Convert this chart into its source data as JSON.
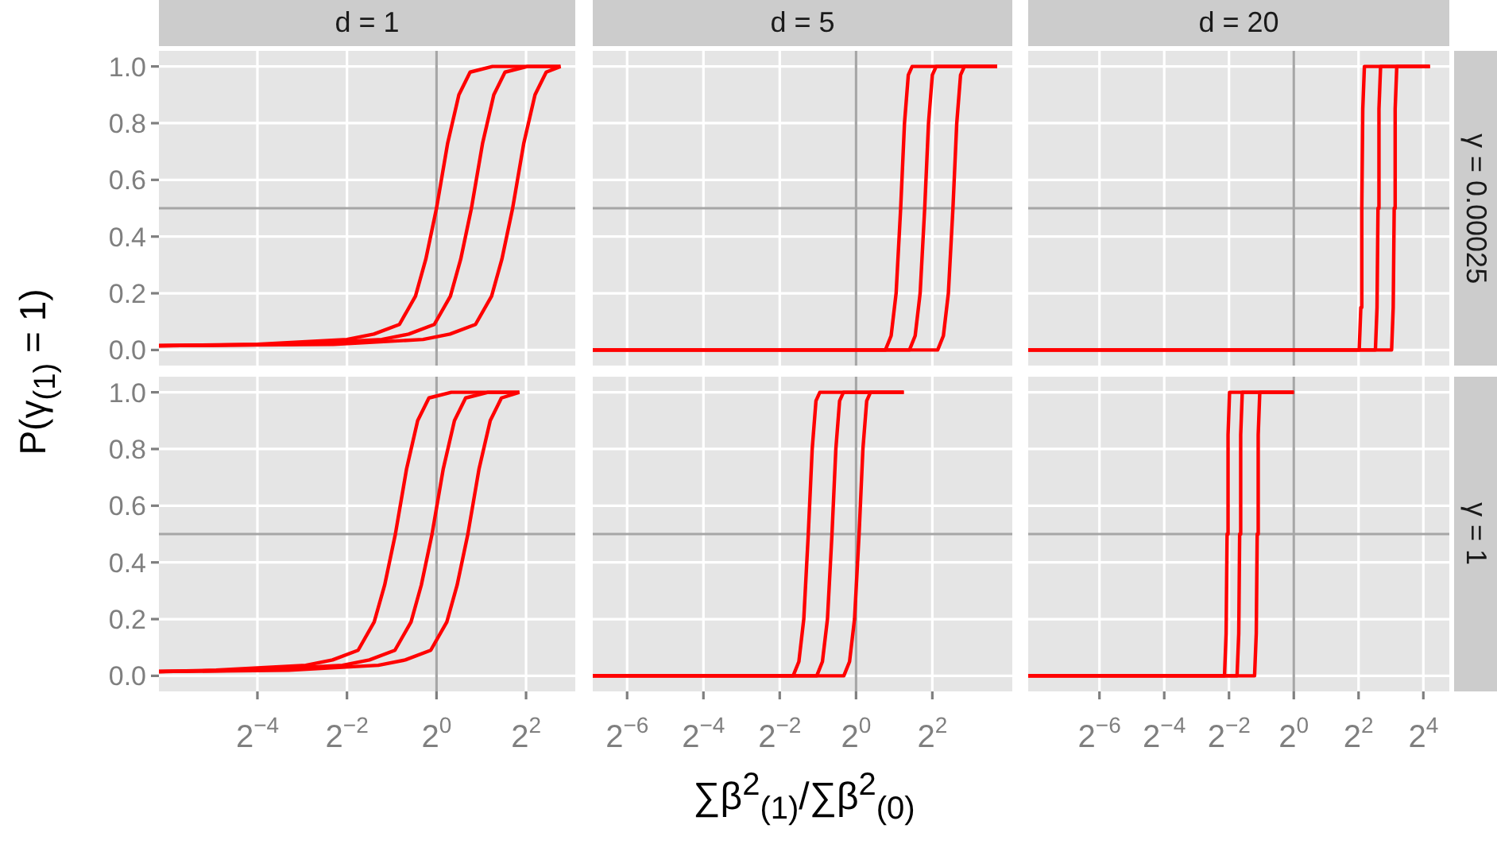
{
  "chart_data": [
    {
      "type": "line",
      "title": "d = 1",
      "log": "x",
      "grid": true,
      "tick_labels": "y",
      "xlim": [
        0.0136,
        8.57
      ],
      "xticks": [
        0.0625,
        0.25,
        1,
        4
      ],
      "ylim": [
        -0.055,
        1.055
      ],
      "yticks": [
        {
          "value": 0,
          "label": "0.0"
        },
        {
          "value": 0.2,
          "label": "0.2"
        },
        {
          "value": 0.4,
          "label": "0.4"
        },
        {
          "value": 0.6,
          "label": "0.6"
        },
        {
          "value": 0.8,
          "label": "0.8"
        },
        {
          "value": 1,
          "label": "1.0"
        }
      ],
      "ref_lines": [
        {
          "axis": "x",
          "value": 1,
          "color": "#a6a6a6"
        },
        {
          "axis": "y",
          "value": 0.5,
          "color": "#a6a6a6"
        }
      ],
      "series": [
        {
          "color": "#ff0000",
          "x": [
            0.0136,
            0.0625,
            0.25,
            0.379,
            0.563,
            0.722,
            0.847,
            1,
            1.189,
            1.414,
            1.682,
            2.378,
            6.82
          ],
          "values": [
            0.015,
            0.02,
            0.037,
            0.056,
            0.09,
            0.19,
            0.32,
            0.5,
            0.73,
            0.9,
            0.98,
            1,
            1
          ]
        },
        {
          "color": "#ff0000",
          "x": [
            0.0136,
            0.1073,
            0.429,
            0.651,
            0.966,
            1.24,
            1.454,
            1.717,
            2.042,
            2.428,
            2.888,
            4.084,
            6.82
          ],
          "values": [
            0.015,
            0.02,
            0.037,
            0.056,
            0.09,
            0.19,
            0.32,
            0.5,
            0.73,
            0.9,
            0.98,
            1,
            1
          ]
        },
        {
          "color": "#ff0000",
          "x": [
            0.0136,
            0.203,
            0.812,
            1.231,
            1.828,
            2.346,
            2.751,
            3.249,
            3.864,
            4.595,
            5.464,
            6.82
          ],
          "values": [
            0.015,
            0.02,
            0.037,
            0.056,
            0.09,
            0.19,
            0.32,
            0.5,
            0.73,
            0.9,
            0.98,
            1
          ]
        }
      ]
    },
    {
      "type": "line",
      "title": "d = 5",
      "log": "x",
      "grid": true,
      "tick_labels": false,
      "xlim": [
        0.00837,
        17.1
      ],
      "xticks": [
        0.015625,
        0.0625,
        0.25,
        1,
        4
      ],
      "ylim": [
        -0.055,
        1.055
      ],
      "yticks": [
        0,
        0.2,
        0.4,
        0.6,
        0.8,
        1
      ],
      "ref_lines": [
        {
          "axis": "x",
          "value": 1,
          "color": "#a6a6a6"
        },
        {
          "axis": "y",
          "value": 0.5,
          "color": "#a6a6a6"
        }
      ],
      "series": [
        {
          "color": "#ff0000",
          "x": [
            0.00837,
            1.705,
            1.892,
            2.071,
            2.25,
            2.412,
            2.585,
            2.771,
            13.0
          ],
          "values": [
            0,
            0,
            0.05,
            0.2,
            0.5,
            0.8,
            0.97,
            1,
            1
          ]
        },
        {
          "color": "#ff0000",
          "x": [
            0.00837,
            2.639,
            2.928,
            3.204,
            3.482,
            3.732,
            4.0,
            4.287,
            13.0
          ],
          "values": [
            0,
            0,
            0.05,
            0.2,
            0.5,
            0.8,
            0.97,
            1,
            1
          ]
        },
        {
          "color": "#ff0000",
          "x": [
            0.00837,
            4.407,
            4.89,
            5.352,
            5.816,
            6.233,
            6.68,
            7.16,
            13.0
          ],
          "values": [
            0,
            0,
            0.05,
            0.2,
            0.5,
            0.8,
            0.97,
            1,
            1
          ]
        }
      ]
    },
    {
      "type": "line",
      "title": "d = 20",
      "annotations": [
        "γ = 0.00025"
      ],
      "log": "x",
      "grid": true,
      "tick_labels": false,
      "xlim": [
        0.0034,
        27.9
      ],
      "xticks": [
        0.015625,
        0.0625,
        0.25,
        1,
        4,
        16
      ],
      "ylim": [
        -0.055,
        1.055
      ],
      "yticks": [
        0,
        0.2,
        0.4,
        0.6,
        0.8,
        1
      ],
      "ref_lines": [
        {
          "axis": "x",
          "value": 1,
          "color": "#a6a6a6"
        },
        {
          "axis": "y",
          "value": 0.5,
          "color": "#a6a6a6"
        }
      ],
      "series": [
        {
          "color": "#ff0000",
          "x": [
            0.0034,
            4.056,
            4.199,
            4.287,
            4.377,
            4.532,
            18.4
          ],
          "values": [
            0,
            0,
            0.15,
            0.5,
            0.85,
            1,
            1
          ]
        },
        {
          "color": "#ff0000",
          "x": [
            0.0034,
            5.736,
            5.938,
            6.063,
            6.19,
            6.409,
            18.4
          ],
          "values": [
            0,
            0,
            0.15,
            0.5,
            0.85,
            1,
            1
          ]
        },
        {
          "color": "#ff0000",
          "x": [
            0.0034,
            8.111,
            8.397,
            8.574,
            8.754,
            9.063,
            18.4
          ],
          "values": [
            0,
            0,
            0.15,
            0.5,
            0.85,
            1,
            1
          ]
        }
      ]
    },
    {
      "type": "line",
      "ylabel": "P(γ$_{(1)}$ = 1)",
      "log": "x",
      "grid": true,
      "xlim": [
        0.0136,
        8.57
      ],
      "xticks": [
        {
          "value": 0.0625,
          "label": "2$^{−4}$"
        },
        {
          "value": 0.25,
          "label": "2$^{−2}$"
        },
        {
          "value": 1,
          "label": "2$^{0}$"
        },
        {
          "value": 4,
          "label": "2$^{2}$"
        }
      ],
      "ylim": [
        -0.055,
        1.055
      ],
      "yticks": [
        {
          "value": 0,
          "label": "0.0"
        },
        {
          "value": 0.2,
          "label": "0.2"
        },
        {
          "value": 0.4,
          "label": "0.4"
        },
        {
          "value": 0.6,
          "label": "0.6"
        },
        {
          "value": 0.8,
          "label": "0.8"
        },
        {
          "value": 1,
          "label": "1.0"
        }
      ],
      "ref_lines": [
        {
          "axis": "x",
          "value": 1,
          "color": "#a6a6a6"
        },
        {
          "axis": "y",
          "value": 0.5,
          "color": "#a6a6a6"
        }
      ],
      "series": [
        {
          "color": "#ff0000",
          "x": [
            0.0136,
            0.033,
            0.1321,
            0.2,
            0.297,
            0.381,
            0.448,
            0.529,
            0.629,
            0.747,
            0.889,
            1.257,
            3.605
          ],
          "values": [
            0.015,
            0.02,
            0.037,
            0.056,
            0.09,
            0.19,
            0.32,
            0.5,
            0.73,
            0.9,
            0.98,
            1,
            1
          ]
        },
        {
          "color": "#ff0000",
          "x": [
            0.0136,
            0.0583,
            0.233,
            0.354,
            0.525,
            0.674,
            0.79,
            0.933,
            1.11,
            1.32,
            1.569,
            2.219,
            3.605
          ],
          "values": [
            0.015,
            0.02,
            0.037,
            0.056,
            0.09,
            0.19,
            0.32,
            0.5,
            0.73,
            0.9,
            0.98,
            1,
            1
          ]
        },
        {
          "color": "#ff0000",
          "x": [
            0.0136,
            0.1015,
            0.406,
            0.616,
            0.914,
            1.173,
            1.376,
            1.625,
            1.932,
            2.297,
            2.732,
            3.605
          ],
          "values": [
            0.015,
            0.02,
            0.037,
            0.056,
            0.09,
            0.19,
            0.32,
            0.5,
            0.73,
            0.9,
            0.98,
            1
          ]
        }
      ]
    },
    {
      "type": "line",
      "xlabel": "∑β$^{2}$$_{(1)}$/∑β$^{2}$$_{(0)}$",
      "log": "x",
      "grid": true,
      "tick_labels": "x",
      "xlim": [
        0.00837,
        17.1
      ],
      "xticks": [
        {
          "value": 0.015625,
          "label": "2$^{−6}$"
        },
        {
          "value": 0.0625,
          "label": "2$^{−4}$"
        },
        {
          "value": 0.25,
          "label": "2$^{−2}$"
        },
        {
          "value": 1,
          "label": "2$^{0}$"
        },
        {
          "value": 4,
          "label": "2$^{2}$"
        }
      ],
      "ylim": [
        -0.055,
        1.055
      ],
      "yticks": [
        0,
        0.2,
        0.4,
        0.6,
        0.8,
        1
      ],
      "ref_lines": [
        {
          "axis": "x",
          "value": 1,
          "color": "#a6a6a6"
        },
        {
          "axis": "y",
          "value": 0.5,
          "color": "#a6a6a6"
        }
      ],
      "series": [
        {
          "color": "#ff0000",
          "x": [
            0.00837,
            0.319,
            0.354,
            0.387,
            0.42,
            0.451,
            0.483,
            0.518,
            2.378
          ],
          "values": [
            0,
            0,
            0.05,
            0.2,
            0.5,
            0.8,
            0.97,
            1,
            1
          ]
        },
        {
          "color": "#ff0000",
          "x": [
            0.00837,
            0.49,
            0.543,
            0.595,
            0.646,
            0.693,
            0.742,
            0.796,
            2.378
          ],
          "values": [
            0,
            0,
            0.05,
            0.2,
            0.5,
            0.8,
            0.97,
            1,
            1
          ]
        },
        {
          "color": "#ff0000",
          "x": [
            0.00837,
            0.801,
            0.889,
            0.973,
            1.057,
            1.133,
            1.214,
            1.301,
            2.378
          ],
          "values": [
            0,
            0,
            0.05,
            0.2,
            0.5,
            0.8,
            0.97,
            1,
            1
          ]
        }
      ]
    },
    {
      "type": "line",
      "annotations": [
        "γ = 1"
      ],
      "log": "x",
      "grid": true,
      "tick_labels": "x",
      "xlim": [
        0.0034,
        27.9
      ],
      "xticks": [
        {
          "value": 0.015625,
          "label": "2$^{−6}$"
        },
        {
          "value": 0.0625,
          "label": "2$^{−4}$"
        },
        {
          "value": 0.25,
          "label": "2$^{−2}$"
        },
        {
          "value": 1,
          "label": "2$^{0}$"
        },
        {
          "value": 4,
          "label": "2$^{2}$"
        },
        {
          "value": 16,
          "label": "2$^{4}$"
        }
      ],
      "ylim": [
        -0.055,
        1.055
      ],
      "yticks": [
        0,
        0.2,
        0.4,
        0.6,
        0.8,
        1
      ],
      "ref_lines": [
        {
          "axis": "x",
          "value": 1,
          "color": "#a6a6a6"
        },
        {
          "axis": "y",
          "value": 0.5,
          "color": "#a6a6a6"
        }
      ],
      "series": [
        {
          "color": "#ff0000",
          "x": [
            0.0034,
            0.227,
            0.235,
            0.24,
            0.245,
            0.253,
            1
          ],
          "values": [
            0,
            0,
            0.15,
            0.5,
            0.85,
            1,
            1
          ]
        },
        {
          "color": "#ff0000",
          "x": [
            0.0034,
            0.297,
            0.308,
            0.314,
            0.321,
            0.332,
            1
          ],
          "values": [
            0,
            0,
            0.15,
            0.5,
            0.85,
            1,
            1
          ]
        },
        {
          "color": "#ff0000",
          "x": [
            0.0034,
            0.432,
            0.448,
            0.457,
            0.467,
            0.483,
            1
          ],
          "values": [
            0,
            0,
            0.15,
            0.5,
            0.85,
            1,
            1
          ]
        }
      ]
    }
  ]
}
